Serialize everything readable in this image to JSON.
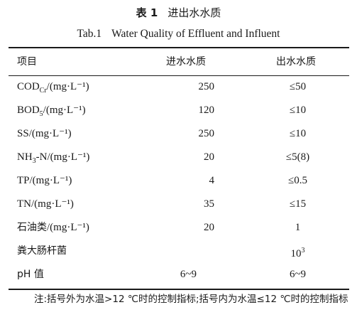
{
  "title": {
    "number": "表 1",
    "cn": "进出水水质",
    "en_number": "Tab.1",
    "en": "Water Quality of Effluent and Influent"
  },
  "table": {
    "headers": [
      "项目",
      "进水水质",
      "出水水质"
    ],
    "rows": [
      {
        "item": "COD",
        "sub": "Cr",
        "sup": "",
        "unit": "/(mg·L⁻¹)",
        "influent": "250",
        "effluent": "≤50"
      },
      {
        "item": "BOD",
        "sub": "5",
        "sup": "",
        "unit": "/(mg·L⁻¹)",
        "influent": "120",
        "effluent": "≤10"
      },
      {
        "item": "SS",
        "sub": "",
        "sup": "",
        "unit": "/(mg·L⁻¹)",
        "influent": "250",
        "effluent": "≤10"
      },
      {
        "item": "NH",
        "sub": "3",
        "sup": "",
        "unit": "-N/(mg·L⁻¹)",
        "influent": "20",
        "effluent": "≤5(8)"
      },
      {
        "item": "TP",
        "sub": "",
        "sup": "",
        "unit": "/(mg·L⁻¹)",
        "influent": "4",
        "effluent": "≤0.5"
      },
      {
        "item": "TN",
        "sub": "",
        "sup": "",
        "unit": "/(mg·L⁻¹)",
        "influent": "35",
        "effluent": "≤15"
      },
      {
        "item": "石油类",
        "sub": "",
        "sup": "",
        "unit": "/(mg·L⁻¹)",
        "influent": "20",
        "effluent": "1"
      },
      {
        "item": "粪大肠杆菌",
        "sub": "",
        "sup": "",
        "unit": "",
        "influent": "",
        "effluent": "10",
        "effluent_sup": "3"
      },
      {
        "item": "pH 值",
        "sub": "",
        "sup": "",
        "unit": "",
        "influent": "6~9",
        "effluent": "6~9"
      }
    ]
  },
  "note": "注:括号外为水温>12 ℃时的控制指标;括号内为水温≤12 ℃时的控制指标"
}
